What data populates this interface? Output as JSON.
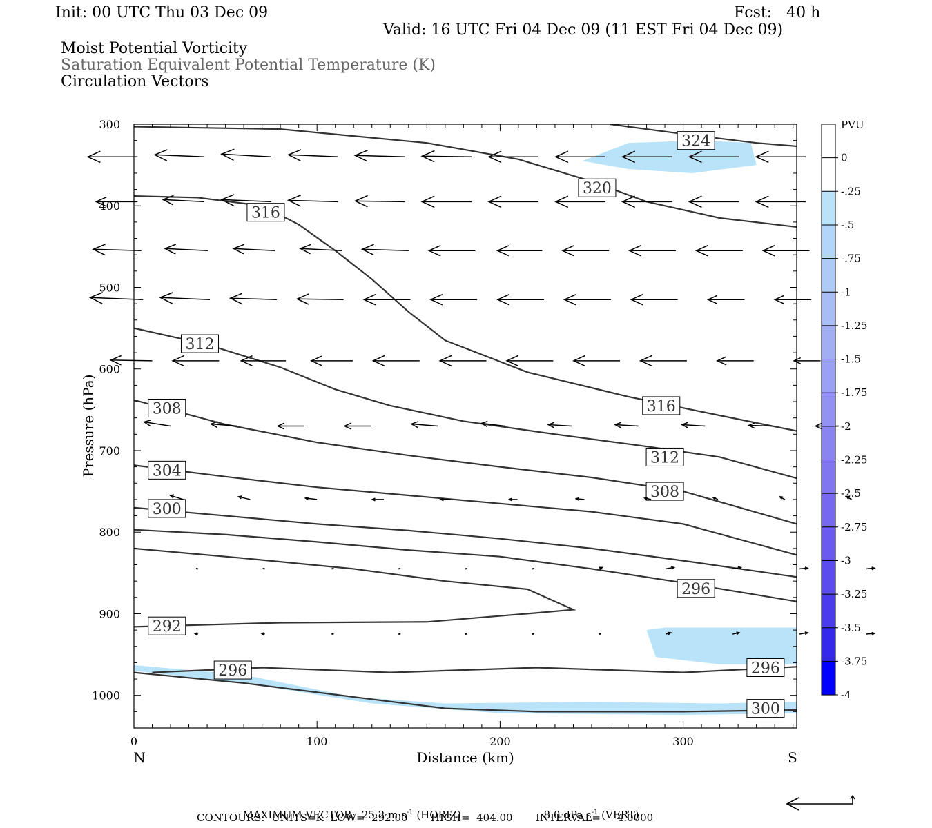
{
  "header": {
    "init": "Init: 00 UTC Thu 03 Dec 09",
    "fcst": "Fcst:   40 h",
    "valid": "Valid: 16 UTC Fri 04 Dec 09 (11 EST Fri 04 Dec 09)",
    "field1": "Moist Potential Vorticity",
    "field2": "Saturation Equivalent Potential Temperature (K)",
    "field3": "Circulation Vectors"
  },
  "footer": {
    "max_vector": "MAXIMUM VECTOR:  25.2 m s",
    "max_vector_horiz": "(HORIZ)",
    "max_vector_vert_val": "8.0 dPa s",
    "max_vector_vert": "(VERT)",
    "exponent": "-1",
    "contours": "CONTOURS:  UNITS=K  LOW=  292.00       HIGH=  404.00       INTERVAL=     4.0000"
  },
  "colors": {
    "contour": "#333333",
    "vector": "#000000",
    "pv_fill": "#b8e3f8",
    "colorbar": [
      "#ffffff",
      "#ffffff",
      "#b8e3f8",
      "#b3d6f7",
      "#aecaf6",
      "#a8bcf5",
      "#a1aef4",
      "#9aa0f3",
      "#9292f2",
      "#8a84f1",
      "#8076f0",
      "#7668ef",
      "#6a5aef",
      "#5b4ced",
      "#4a3cec",
      "#3328eb",
      "#0000ff"
    ]
  },
  "chart_data": {
    "type": "cross-section",
    "xlabel": "Distance (km)",
    "ylabel": "Pressure (hPa)",
    "xlim": [
      0,
      362
    ],
    "ylim": [
      1040,
      300
    ],
    "x_ticks": [
      0,
      100,
      200,
      300
    ],
    "y_ticks": [
      300,
      400,
      500,
      600,
      700,
      800,
      900,
      1000
    ],
    "x_end_labels": {
      "left": "N",
      "right": "S"
    },
    "colorbar": {
      "title": "PVU",
      "labels": [
        "0",
        "-.25",
        "-.5",
        "-.75",
        "-1",
        "-1.25",
        "-1.5",
        "-1.75",
        "-2",
        "-2.25",
        "-2.5",
        "-2.75",
        "-3",
        "-3.25",
        "-3.5",
        "-3.75",
        "-4"
      ]
    },
    "theta_e_contours": [
      {
        "label": "324",
        "label_at": [
          307,
          320
        ],
        "points": [
          [
            260,
            300
          ],
          [
            300,
            312
          ],
          [
            340,
            323
          ],
          [
            362,
            327
          ]
        ]
      },
      {
        "label": "320",
        "label_at": [
          253,
          378
        ],
        "points": [
          [
            0,
            303
          ],
          [
            80,
            306
          ],
          [
            160,
            323
          ],
          [
            210,
            343
          ],
          [
            250,
            370
          ],
          [
            280,
            395
          ],
          [
            320,
            415
          ],
          [
            362,
            426
          ]
        ]
      },
      {
        "label": "316",
        "label_at": [
          72,
          408
        ],
        "points": [
          [
            0,
            388
          ],
          [
            35,
            390
          ],
          [
            70,
            400
          ],
          [
            90,
            423
          ],
          [
            110,
            455
          ],
          [
            130,
            490
          ],
          [
            150,
            530
          ],
          [
            170,
            565
          ],
          [
            215,
            604
          ],
          [
            270,
            634
          ],
          [
            320,
            657
          ],
          [
            362,
            676
          ]
        ]
      },
      {
        "label": "316",
        "label_at": [
          288,
          645
        ],
        "points": []
      },
      {
        "label": "312",
        "label_at": [
          36,
          569
        ],
        "points": [
          [
            0,
            550
          ],
          [
            40,
            570
          ],
          [
            80,
            598
          ],
          [
            110,
            625
          ],
          [
            140,
            645
          ],
          [
            180,
            664
          ],
          [
            230,
            680
          ],
          [
            280,
            695
          ],
          [
            320,
            708
          ],
          [
            362,
            734
          ]
        ]
      },
      {
        "label": "312",
        "label_at": [
          290,
          708
        ],
        "points": []
      },
      {
        "label": "308",
        "label_at": [
          18,
          648
        ],
        "points": [
          [
            0,
            638
          ],
          [
            50,
            668
          ],
          [
            100,
            690
          ],
          [
            150,
            706
          ],
          [
            200,
            720
          ],
          [
            250,
            733
          ],
          [
            300,
            750
          ],
          [
            362,
            790
          ]
        ]
      },
      {
        "label": "308",
        "label_at": [
          290,
          750
        ],
        "points": []
      },
      {
        "label": "304",
        "label_at": [
          18,
          724
        ],
        "points": [
          [
            0,
            718
          ],
          [
            50,
            732
          ],
          [
            100,
            745
          ],
          [
            150,
            755
          ],
          [
            200,
            765
          ],
          [
            250,
            775
          ],
          [
            300,
            790
          ],
          [
            362,
            828
          ]
        ]
      },
      {
        "label": "300",
        "label_at": [
          18,
          771
        ],
        "points": [
          [
            0,
            770
          ],
          [
            50,
            780
          ],
          [
            100,
            790
          ],
          [
            150,
            798
          ],
          [
            200,
            808
          ],
          [
            250,
            820
          ],
          [
            300,
            835
          ],
          [
            362,
            855
          ]
        ]
      },
      {
        "label": "",
        "label_at": null,
        "points": [
          [
            0,
            797
          ],
          [
            50,
            803
          ],
          [
            100,
            812
          ],
          [
            150,
            822
          ],
          [
            200,
            830
          ],
          [
            250,
            845
          ],
          [
            300,
            862
          ],
          [
            362,
            885
          ]
        ]
      },
      {
        "label": "296",
        "label_at": [
          307,
          869
        ],
        "points": []
      },
      {
        "label": "292",
        "label_at": [
          18,
          915
        ],
        "points": [
          [
            0,
            820
          ],
          [
            60,
            832
          ],
          [
            120,
            845
          ],
          [
            170,
            860
          ],
          [
            215,
            870
          ],
          [
            240,
            895
          ],
          [
            220,
            899
          ],
          [
            160,
            910
          ],
          [
            80,
            911
          ],
          [
            0,
            916
          ]
        ]
      },
      {
        "label": "296",
        "label_at": [
          54,
          969
        ],
        "points": [
          [
            10,
            972
          ],
          [
            70,
            966
          ],
          [
            140,
            972
          ],
          [
            220,
            966
          ],
          [
            300,
            972
          ],
          [
            362,
            965
          ]
        ]
      },
      {
        "label": "296",
        "label_at": [
          345,
          966
        ],
        "points": []
      },
      {
        "label": "300",
        "label_at": [
          345,
          1016
        ],
        "points": [
          [
            0,
            972
          ],
          [
            60,
            985
          ],
          [
            120,
            1002
          ],
          [
            170,
            1016
          ],
          [
            220,
            1020
          ],
          [
            300,
            1020
          ],
          [
            362,
            1018
          ]
        ]
      }
    ],
    "pv_regions": [
      {
        "range": "-.25 to -.5",
        "points": [
          [
            245,
            345
          ],
          [
            270,
            323
          ],
          [
            310,
            320
          ],
          [
            337,
            323
          ],
          [
            340,
            350
          ],
          [
            305,
            360
          ],
          [
            270,
            355
          ]
        ]
      },
      {
        "range": "-.25 to -.5",
        "points": [
          [
            280,
            920
          ],
          [
            290,
            917
          ],
          [
            362,
            917
          ],
          [
            362,
            962
          ],
          [
            320,
            962
          ],
          [
            285,
            953
          ]
        ]
      },
      {
        "range": "-.25 to -.5",
        "points": [
          [
            0,
            963
          ],
          [
            60,
            975
          ],
          [
            120,
            1002
          ],
          [
            170,
            1010
          ],
          [
            250,
            1008
          ],
          [
            320,
            1010
          ],
          [
            362,
            1008
          ],
          [
            362,
            1022
          ],
          [
            300,
            1024
          ],
          [
            200,
            1022
          ],
          [
            130,
            1010
          ],
          [
            60,
            985
          ],
          [
            0,
            970
          ]
        ]
      }
    ],
    "vector_levels": [
      {
        "p": 340,
        "x0": 2,
        "dx": 36.5,
        "u": [
          -30,
          -30,
          -30,
          -30,
          -30,
          -30,
          -30,
          -30,
          -30,
          -30,
          -30
        ],
        "v": [
          0,
          0.3,
          0.4,
          0.3,
          0.2,
          0.1,
          0,
          0,
          0,
          0,
          0
        ]
      },
      {
        "p": 395,
        "x0": 2,
        "dx": 36.5,
        "u": [
          -25,
          -25,
          -30,
          -30,
          -30,
          -30,
          -30,
          -30,
          -30,
          -30,
          -30
        ],
        "v": [
          0,
          0.3,
          0.3,
          0.2,
          0.1,
          0,
          0,
          0,
          0,
          0,
          0
        ]
      },
      {
        "p": 455,
        "x0": 4,
        "dx": 36.5,
        "u": [
          -29,
          -26,
          -25,
          -25,
          -28,
          -28,
          -27,
          -28,
          -28,
          -28,
          -28
        ],
        "v": [
          0.2,
          0.3,
          0.3,
          0.3,
          0.2,
          0,
          0,
          0,
          0,
          0,
          0
        ]
      },
      {
        "p": 515,
        "x0": 5,
        "dx": 36.5,
        "u": [
          -32,
          -30,
          -28,
          -28,
          -28,
          -28,
          -28,
          -28,
          -28,
          -22,
          -22
        ],
        "v": [
          0.3,
          0.3,
          0.2,
          0.1,
          0,
          0,
          0,
          0,
          0,
          0,
          0
        ]
      },
      {
        "p": 590,
        "x0": 10,
        "dx": 36.5,
        "u": [
          -25,
          -28,
          -27,
          -25,
          -28,
          -28,
          -28,
          -28,
          -28,
          -22,
          -16
        ],
        "v": [
          0.1,
          0,
          0,
          0,
          0,
          0,
          0,
          0,
          0,
          0,
          0
        ]
      },
      {
        "p": 670,
        "x0": 20,
        "dx": 36.5,
        "u": [
          -16,
          -16,
          -16,
          -16,
          -16,
          -14,
          -14,
          -14,
          -14,
          -14,
          -14
        ],
        "v": [
          0.6,
          0.3,
          0,
          0,
          0.3,
          0.4,
          0.2,
          0.2,
          0.2,
          0.1,
          0
        ]
      },
      {
        "p": 760,
        "x0": 27,
        "dx": 36.5,
        "u": [
          -8,
          -7,
          -7,
          -7,
          -6,
          -5,
          -5,
          -4,
          -3,
          -3,
          -3
        ],
        "v": [
          0.6,
          0.4,
          0.2,
          0,
          0,
          0,
          0.1,
          0.2,
          0.3,
          0.4,
          0.4
        ]
      },
      {
        "p": 845,
        "x0": 35,
        "dx": 36.5,
        "u": [
          -1,
          -1,
          0,
          0,
          0,
          0,
          2,
          5,
          5,
          5,
          5
        ],
        "v": [
          0.1,
          0.1,
          0.1,
          0.1,
          0.2,
          0.2,
          0.2,
          0.2,
          0.2,
          0.1,
          0.1
        ]
      },
      {
        "p": 925,
        "x0": 35,
        "dx": 36.5,
        "u": [
          -2,
          -2,
          0,
          0,
          0,
          0,
          0,
          3,
          4,
          5,
          5
        ],
        "v": [
          0.1,
          0.1,
          0.1,
          0.1,
          0.1,
          0.1,
          0.1,
          0.2,
          0.2,
          0.2,
          0.1
        ]
      }
    ]
  }
}
